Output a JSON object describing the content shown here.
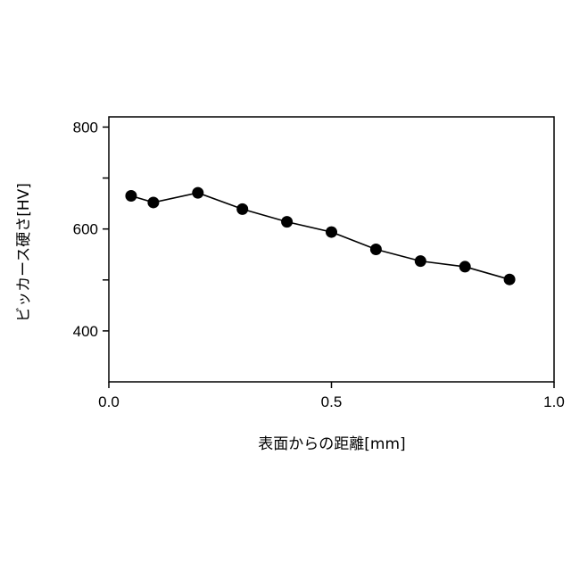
{
  "chart_data": {
    "type": "line",
    "xlabel": "表面からの距離[mm]",
    "ylabel": "ビッカース硬さ[HV]",
    "xlim": [
      0.0,
      1.0
    ],
    "ylim": [
      300,
      820
    ],
    "xticks": [
      0.0,
      0.5,
      1.0
    ],
    "xtick_labels": [
      "0.0",
      "0.5",
      "1.0"
    ],
    "yticks": [
      400,
      500,
      600,
      700,
      800
    ],
    "ytick_labels": [
      "400",
      "",
      "600",
      "",
      "800"
    ],
    "grid": false,
    "series": [
      {
        "x": [
          0.05,
          0.1,
          0.2,
          0.3,
          0.4,
          0.5,
          0.6,
          0.7,
          0.8,
          0.9
        ],
        "y": [
          665,
          652,
          671,
          639,
          614,
          594,
          560,
          537,
          526,
          501
        ],
        "color": "#000000",
        "marker": "circle"
      }
    ]
  }
}
